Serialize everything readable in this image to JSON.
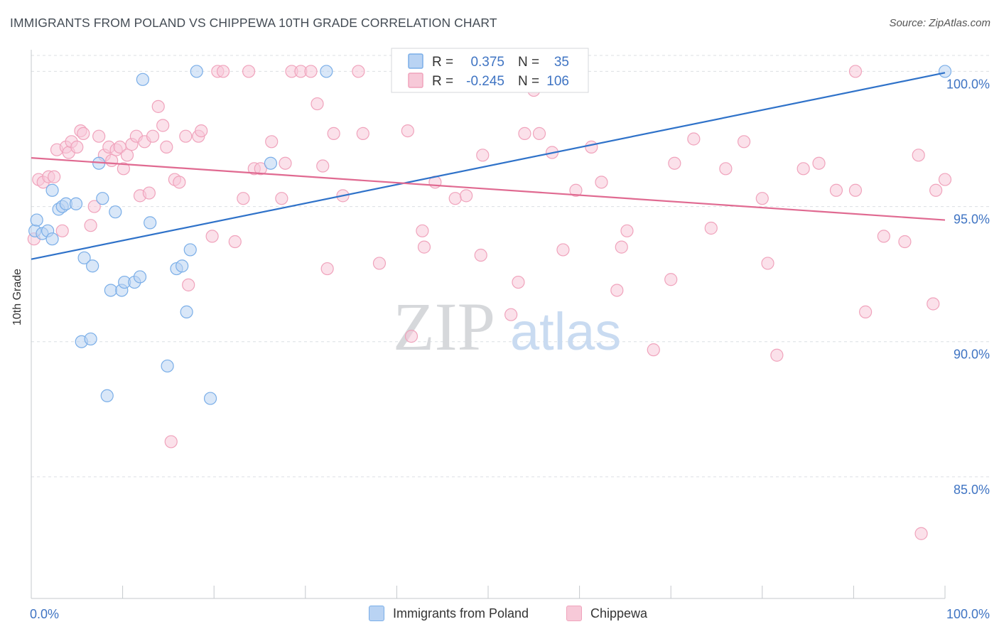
{
  "header": {
    "title": "IMMIGRANTS FROM POLAND VS CHIPPEWA 10TH GRADE CORRELATION CHART",
    "source": "Source: ZipAtlas.com"
  },
  "watermark": {
    "zip": "ZIP",
    "atlas": "atlas"
  },
  "chart_data": {
    "type": "scatter",
    "title": "IMMIGRANTS FROM POLAND VS CHIPPEWA 10TH GRADE CORRELATION CHART",
    "xlabel": "",
    "ylabel": "10th Grade",
    "xlim": [
      0,
      100
    ],
    "ylim": [
      80.5,
      100.8
    ],
    "x_tick_labels": [
      "0.0%",
      "100.0%"
    ],
    "y_ticks": [
      85,
      90,
      95,
      100
    ],
    "y_tick_labels": [
      "85.0%",
      "90.0%",
      "95.0%",
      "100.0%"
    ],
    "grid": true,
    "legend_position": "top-center",
    "legend_stats": [
      {
        "r_label": "R =",
        "r_value": "0.375",
        "n_label": "N =",
        "n_value": "35"
      },
      {
        "r_label": "R =",
        "r_value": "-0.245",
        "n_label": "N =",
        "n_value": "106"
      }
    ],
    "series": [
      {
        "name": "Immigrants from Poland",
        "color": "#7aaee8",
        "fill": "#b9d3f3",
        "line_color": "#2f72c9",
        "trend": {
          "x": [
            0,
            100
          ],
          "y": [
            93.05,
            99.95
          ]
        },
        "points": [
          [
            0.4,
            94.1
          ],
          [
            0.6,
            94.5
          ],
          [
            1.2,
            94.0
          ],
          [
            1.8,
            94.1
          ],
          [
            2.3,
            93.8
          ],
          [
            2.3,
            95.6
          ],
          [
            3.0,
            94.9
          ],
          [
            3.4,
            95.0
          ],
          [
            3.8,
            95.1
          ],
          [
            4.9,
            95.1
          ],
          [
            5.5,
            90.0
          ],
          [
            5.8,
            93.1
          ],
          [
            6.5,
            90.1
          ],
          [
            6.7,
            92.8
          ],
          [
            7.4,
            96.6
          ],
          [
            7.8,
            95.3
          ],
          [
            8.3,
            88.0
          ],
          [
            8.7,
            91.9
          ],
          [
            9.2,
            94.8
          ],
          [
            9.9,
            91.9
          ],
          [
            10.2,
            92.2
          ],
          [
            11.3,
            92.2
          ],
          [
            11.9,
            92.4
          ],
          [
            12.2,
            99.7
          ],
          [
            13.0,
            94.4
          ],
          [
            14.9,
            89.1
          ],
          [
            15.9,
            92.7
          ],
          [
            16.5,
            92.8
          ],
          [
            17.0,
            91.1
          ],
          [
            17.4,
            93.4
          ],
          [
            18.1,
            100.0
          ],
          [
            19.6,
            87.9
          ],
          [
            26.2,
            96.6
          ],
          [
            32.3,
            100.0
          ],
          [
            100.0,
            100.0
          ]
        ]
      },
      {
        "name": "Chippewa",
        "color": "#f0a3bc",
        "fill": "#f7c9d8",
        "line_color": "#e06a91",
        "trend": {
          "x": [
            0,
            100
          ],
          "y": [
            96.8,
            94.5
          ]
        },
        "points": [
          [
            0.3,
            93.8
          ],
          [
            0.8,
            96.0
          ],
          [
            1.3,
            95.9
          ],
          [
            1.9,
            96.1
          ],
          [
            2.5,
            96.1
          ],
          [
            2.8,
            97.1
          ],
          [
            3.4,
            94.1
          ],
          [
            3.8,
            97.2
          ],
          [
            4.1,
            97.0
          ],
          [
            4.4,
            97.4
          ],
          [
            5.0,
            97.2
          ],
          [
            5.4,
            97.8
          ],
          [
            5.7,
            97.7
          ],
          [
            6.5,
            94.3
          ],
          [
            6.9,
            95.0
          ],
          [
            7.4,
            97.6
          ],
          [
            8.0,
            96.9
          ],
          [
            8.5,
            97.2
          ],
          [
            8.8,
            96.7
          ],
          [
            9.3,
            97.1
          ],
          [
            9.7,
            97.2
          ],
          [
            10.1,
            96.4
          ],
          [
            10.5,
            96.9
          ],
          [
            11.0,
            97.3
          ],
          [
            11.5,
            97.6
          ],
          [
            11.9,
            95.4
          ],
          [
            12.4,
            97.4
          ],
          [
            12.9,
            95.5
          ],
          [
            13.3,
            97.6
          ],
          [
            13.9,
            98.7
          ],
          [
            14.4,
            98.0
          ],
          [
            14.8,
            97.2
          ],
          [
            15.3,
            86.3
          ],
          [
            15.7,
            96.0
          ],
          [
            16.2,
            95.9
          ],
          [
            16.9,
            97.6
          ],
          [
            17.2,
            92.1
          ],
          [
            18.3,
            97.6
          ],
          [
            18.6,
            97.8
          ],
          [
            19.8,
            93.9
          ],
          [
            20.4,
            100.0
          ],
          [
            21.0,
            100.0
          ],
          [
            22.3,
            93.7
          ],
          [
            23.2,
            95.3
          ],
          [
            23.8,
            100.0
          ],
          [
            24.4,
            96.4
          ],
          [
            25.1,
            96.4
          ],
          [
            26.3,
            97.4
          ],
          [
            27.4,
            95.3
          ],
          [
            27.8,
            96.6
          ],
          [
            28.5,
            100.0
          ],
          [
            29.5,
            100.0
          ],
          [
            30.6,
            100.0
          ],
          [
            31.3,
            98.8
          ],
          [
            31.9,
            96.5
          ],
          [
            32.4,
            92.7
          ],
          [
            33.1,
            97.7
          ],
          [
            34.1,
            95.4
          ],
          [
            35.8,
            100.0
          ],
          [
            36.3,
            97.7
          ],
          [
            38.1,
            92.9
          ],
          [
            41.2,
            97.8
          ],
          [
            41.6,
            90.2
          ],
          [
            42.8,
            94.1
          ],
          [
            43.0,
            93.5
          ],
          [
            44.2,
            95.9
          ],
          [
            46.4,
            95.3
          ],
          [
            47.6,
            95.4
          ],
          [
            49.2,
            93.2
          ],
          [
            49.4,
            96.9
          ],
          [
            52.5,
            91.0
          ],
          [
            53.3,
            92.2
          ],
          [
            54.0,
            97.7
          ],
          [
            55.0,
            99.3
          ],
          [
            55.6,
            97.7
          ],
          [
            57.0,
            97.0
          ],
          [
            58.2,
            93.4
          ],
          [
            59.6,
            95.6
          ],
          [
            61.3,
            97.2
          ],
          [
            62.4,
            95.9
          ],
          [
            64.1,
            91.9
          ],
          [
            64.6,
            93.5
          ],
          [
            65.2,
            94.1
          ],
          [
            68.1,
            89.7
          ],
          [
            70.0,
            92.3
          ],
          [
            70.4,
            96.6
          ],
          [
            72.5,
            97.5
          ],
          [
            74.4,
            94.2
          ],
          [
            76.0,
            96.4
          ],
          [
            78.0,
            97.4
          ],
          [
            80.0,
            95.3
          ],
          [
            80.6,
            92.9
          ],
          [
            81.6,
            89.5
          ],
          [
            84.5,
            96.4
          ],
          [
            86.2,
            96.6
          ],
          [
            88.1,
            95.6
          ],
          [
            90.2,
            95.6
          ],
          [
            91.3,
            91.1
          ],
          [
            93.3,
            93.9
          ],
          [
            95.6,
            93.7
          ],
          [
            97.1,
            96.9
          ],
          [
            99.0,
            95.6
          ],
          [
            100.0,
            96.0
          ],
          [
            97.4,
            82.9
          ],
          [
            98.7,
            91.4
          ],
          [
            90.2,
            100.0
          ]
        ]
      }
    ]
  }
}
